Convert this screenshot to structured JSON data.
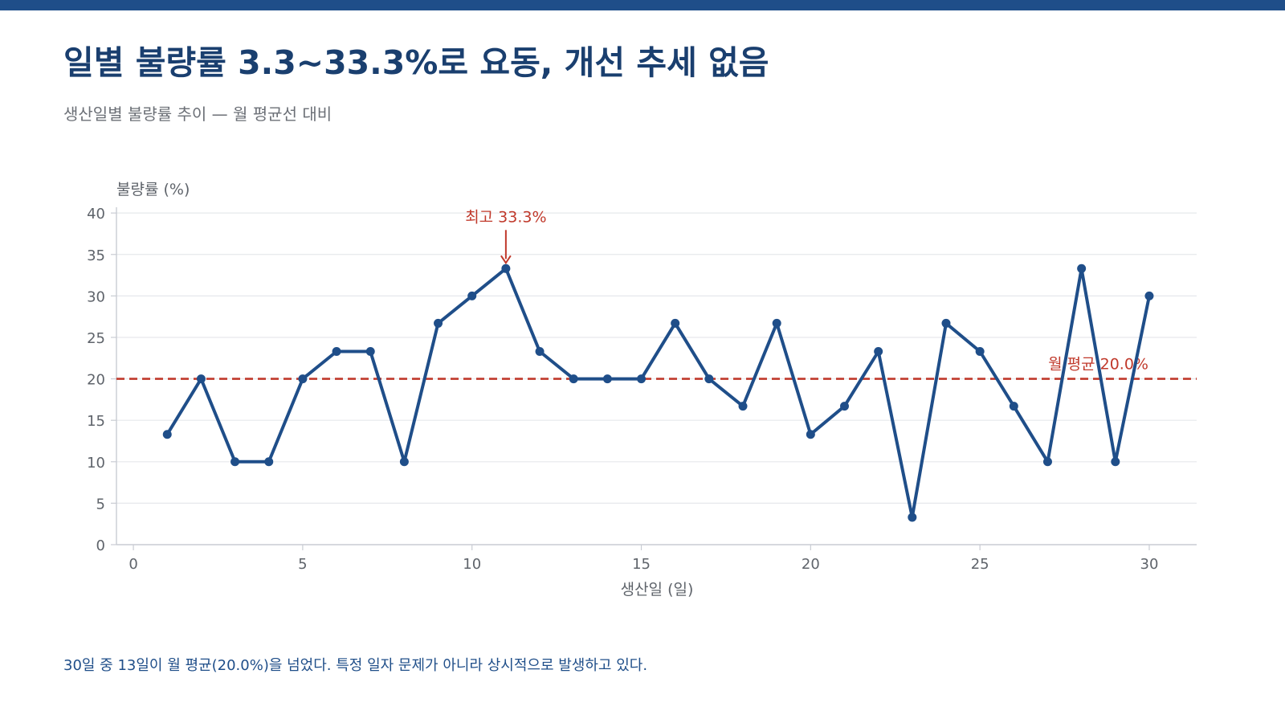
{
  "header": {
    "title": "일별 불량률 3.3~33.3%로 요동, 개선 추세 없음",
    "subtitle": "생산일별 불량률 추이 — 월 평균선 대비"
  },
  "footnote": "30일 중 13일이 월 평균(20.0%)을 넘었다. 특정 일자 문제가 아니라 상시적으로 발생하고 있다.",
  "colors": {
    "accent_bar": "#1f4e89",
    "series": "#1f4e89",
    "average_line": "#c0392b",
    "annotation": "#c0392b",
    "grid": "#e6e8ec",
    "axis": "#c9ccd3",
    "tick_text": "#5f646b"
  },
  "chart_data": {
    "type": "line",
    "title": "",
    "xlabel": "생산일 (일)",
    "ylabel": "불량률 (%)",
    "xlim": [
      -0.5,
      31.4
    ],
    "ylim": [
      0,
      40.5
    ],
    "xticks": [
      0,
      5,
      10,
      15,
      20,
      25,
      30
    ],
    "yticks": [
      0,
      5,
      10,
      15,
      20,
      25,
      30,
      35,
      40
    ],
    "grid": true,
    "x": [
      1,
      2,
      3,
      4,
      5,
      6,
      7,
      8,
      9,
      10,
      11,
      12,
      13,
      14,
      15,
      16,
      17,
      18,
      19,
      20,
      21,
      22,
      23,
      24,
      25,
      26,
      27,
      28,
      29,
      30
    ],
    "series": [
      {
        "values": [
          13.3,
          20.0,
          10.0,
          10.0,
          20.0,
          23.3,
          23.3,
          10.0,
          26.7,
          30.0,
          33.3,
          23.3,
          20.0,
          20.0,
          20.0,
          26.7,
          20.0,
          16.7,
          26.7,
          13.3,
          16.7,
          23.3,
          3.3,
          26.7,
          23.3,
          16.7,
          10.0,
          33.3,
          10.0,
          30.0
        ]
      }
    ],
    "reference_line": {
      "y": 20.0,
      "label": "월 평균 20.0%"
    },
    "annotations": [
      {
        "x": 11,
        "y": 33.3,
        "text": "최고 33.3%"
      }
    ]
  }
}
